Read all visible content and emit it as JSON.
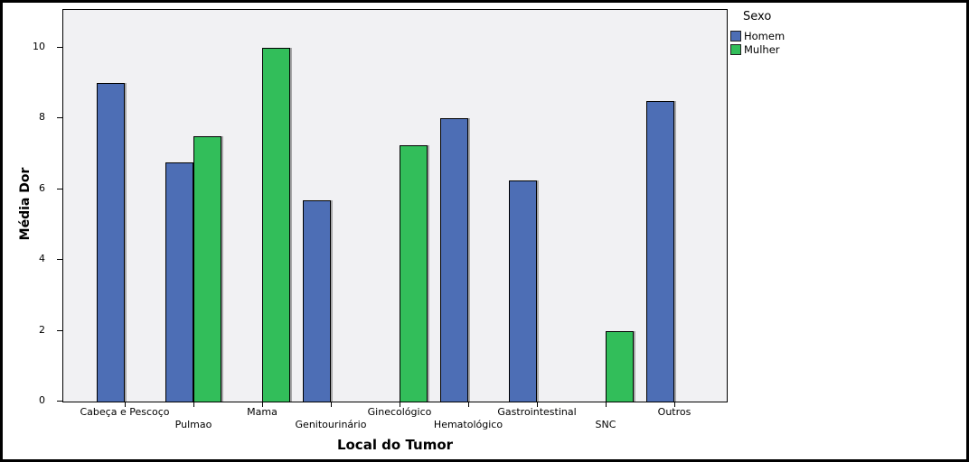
{
  "chart_data": {
    "type": "bar",
    "title": "",
    "xlabel": "Local do Tumor",
    "ylabel": "Média Dor",
    "ylim": [
      0,
      11.1
    ],
    "yticks": [
      0,
      2,
      4,
      6,
      8,
      10
    ],
    "grid": false,
    "plot_background": "#f1f1f3",
    "bar_border_color": "#000000",
    "categories": [
      "Cabeça e Pescoço",
      "Pulmao",
      "Mama",
      "Genitourinário",
      "Ginecológico",
      "Hematológico",
      "Gastrointestinal",
      "SNC",
      "Outros"
    ],
    "legend": {
      "title": "Sexo",
      "position": "top-right"
    },
    "series": [
      {
        "name": "Homem",
        "color": "#4d6eb5",
        "values": [
          9,
          6.75,
          null,
          5.7,
          null,
          8,
          6.25,
          null,
          8.5
        ]
      },
      {
        "name": "Mulher",
        "color": "#32be5a",
        "values": [
          null,
          7.5,
          10,
          null,
          7.25,
          null,
          null,
          2,
          null
        ]
      }
    ]
  }
}
